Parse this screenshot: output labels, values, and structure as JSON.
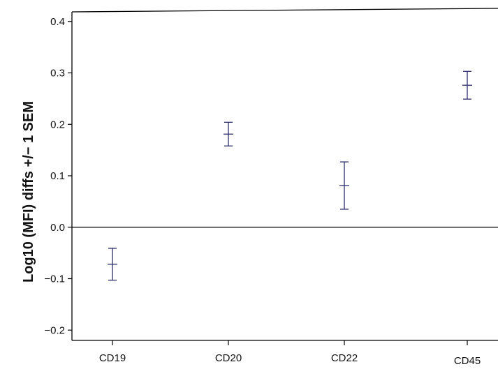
{
  "chart_data": {
    "type": "scatter",
    "title": "",
    "xlabel": "",
    "ylabel": "Log10 (MFI) diffs +/− 1 SEM",
    "categories": [
      "CD19",
      "CD20",
      "CD22",
      "CD45"
    ],
    "series": [
      {
        "mean": [
          -0.072,
          0.181,
          0.081,
          0.276
        ],
        "lower": [
          -0.103,
          0.158,
          0.035,
          0.249
        ],
        "upper": [
          -0.041,
          0.204,
          0.127,
          0.303
        ]
      }
    ],
    "ylim": [
      -0.22,
      0.42
    ],
    "yticks": [
      -0.2,
      -0.1,
      0.0,
      0.1,
      0.2,
      0.3,
      0.4
    ],
    "ytick_labels": [
      "−0.2",
      "−0.1",
      "0.0",
      "0.1",
      "0.2",
      "0.3",
      "0.4"
    ],
    "reference_line_y": 0.0,
    "grid": false,
    "legend": "none",
    "colors": {
      "errorbar": "#2e2e6e",
      "axis": "#000000"
    }
  }
}
